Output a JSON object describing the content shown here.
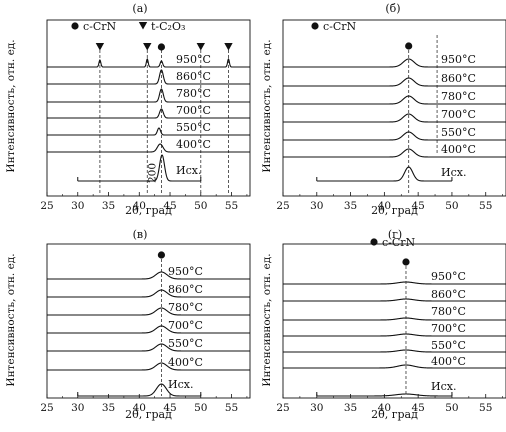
{
  "chart_data": [
    {
      "panel": "(а)",
      "type": "line",
      "xlabel": "2θ, град",
      "ylabel": "Интенсивность, отн. ед.",
      "xlim": [
        25,
        58
      ],
      "xticks": [
        "25",
        "30",
        "35",
        "40",
        "45",
        "50",
        "55"
      ],
      "legend": [
        {
          "marker": "circle",
          "label": "c-CrN"
        },
        {
          "marker": "triangle-down",
          "label": "t-C₂O₃"
        }
      ],
      "peak_marker": {
        "marker": "circle",
        "x": 43.6
      },
      "reflection_lines": [
        {
          "x": 33.6,
          "marker": "triangle-down"
        },
        {
          "x": 41.3,
          "marker": "triangle-down"
        },
        {
          "x": 43.6,
          "marker": "circle"
        },
        {
          "x": 50.0,
          "marker": "triangle-down"
        },
        {
          "x": 54.5,
          "marker": "triangle-down"
        }
      ],
      "annotation": "200",
      "annotation_x": 42.6,
      "series": [
        {
          "name": "950°C",
          "peaks": [
            [
              33.6,
              7,
              0.15
            ],
            [
              41.3,
              8,
              0.15
            ],
            [
              43.6,
              6,
              0.2
            ],
            [
              54.5,
              8,
              0.15
            ]
          ]
        },
        {
          "name": "860°C",
          "peaks": [
            [
              43.6,
              14,
              0.3
            ]
          ]
        },
        {
          "name": "780°C",
          "peaks": [
            [
              43.6,
              13,
              0.3
            ]
          ]
        },
        {
          "name": "700°C",
          "peaks": [
            [
              43.6,
              9,
              0.3
            ]
          ]
        },
        {
          "name": "550°C",
          "peaks": [
            [
              43.2,
              7,
              0.25
            ]
          ]
        },
        {
          "name": "400°C",
          "peaks": [
            [
              43.4,
              8,
              0.45
            ]
          ]
        },
        {
          "name": "Исх.",
          "peaks": [
            [
              43.7,
              26,
              0.4
            ]
          ]
        }
      ]
    },
    {
      "panel": "(б)",
      "type": "line",
      "xlabel": "2θ, град",
      "ylabel": "Интенсивность, отн. ед.",
      "xlim": [
        25,
        58
      ],
      "xticks": [
        "25",
        "30",
        "35",
        "40",
        "45",
        "50",
        "55"
      ],
      "legend": [
        {
          "marker": "circle",
          "label": "c-CrN"
        }
      ],
      "peak_marker": {
        "marker": "circle",
        "x": 43.6
      },
      "reflection_lines": [
        {
          "x": 43.6,
          "marker": "circle"
        },
        {
          "x": 47.8,
          "marker": "none"
        }
      ],
      "series": [
        {
          "name": "950°C",
          "peaks": [
            [
              43.6,
              8,
              0.8
            ]
          ]
        },
        {
          "name": "860°C",
          "peaks": [
            [
              43.6,
              8,
              0.8
            ]
          ]
        },
        {
          "name": "780°C",
          "peaks": [
            [
              43.6,
              8,
              0.8
            ]
          ]
        },
        {
          "name": "700°C",
          "peaks": [
            [
              43.6,
              8,
              0.8
            ]
          ]
        },
        {
          "name": "550°C",
          "peaks": [
            [
              43.6,
              8,
              0.8
            ]
          ]
        },
        {
          "name": "400°C",
          "peaks": [
            [
              43.6,
              8,
              0.8
            ]
          ]
        },
        {
          "name": "Исх.",
          "peaks": [
            [
              43.6,
              14,
              0.6
            ]
          ]
        }
      ]
    },
    {
      "panel": "(в)",
      "type": "line",
      "xlabel": "2θ, град",
      "ylabel": "Интенсивность, отн. ед.",
      "xlim": [
        25,
        58
      ],
      "xticks": [
        "25",
        "30",
        "35",
        "40",
        "45",
        "50",
        "55"
      ],
      "legend": [
        {
          "marker": "circle",
          "label": "c-CrN"
        }
      ],
      "peak_marker": {
        "marker": "circle",
        "x": 43.6
      },
      "reflection_lines": [
        {
          "x": 43.6,
          "marker": "circle"
        }
      ],
      "series": [
        {
          "name": "950°C",
          "peaks": [
            [
              43.6,
              7,
              0.9
            ]
          ]
        },
        {
          "name": "860°C",
          "peaks": [
            [
              43.6,
              7,
              0.9
            ]
          ]
        },
        {
          "name": "780°C",
          "peaks": [
            [
              43.6,
              7,
              0.9
            ]
          ]
        },
        {
          "name": "700°C",
          "peaks": [
            [
              43.6,
              7,
              0.9
            ]
          ]
        },
        {
          "name": "550°C",
          "peaks": [
            [
              43.6,
              7,
              0.9
            ]
          ]
        },
        {
          "name": "400°C",
          "peaks": [
            [
              43.6,
              7,
              0.9
            ]
          ]
        },
        {
          "name": "Исх.",
          "peaks": [
            [
              43.6,
              12,
              0.8
            ]
          ]
        }
      ]
    },
    {
      "panel": "(г)",
      "type": "line",
      "xlabel": "2θ, град",
      "ylabel": "Интенсивность, отн. ед.",
      "xlim": [
        25,
        58
      ],
      "xticks": [
        "25",
        "30",
        "35",
        "40",
        "45",
        "50",
        "55"
      ],
      "legend": [
        {
          "marker": "circle",
          "label": "c-CrN"
        }
      ],
      "peak_marker": {
        "marker": "circle",
        "x": 43.2
      },
      "reflection_lines": [
        {
          "x": 43.2,
          "marker": "circle"
        }
      ],
      "series": [
        {
          "name": "950°C",
          "peaks": [
            [
              43.2,
              2,
              1.2
            ]
          ]
        },
        {
          "name": "860°C",
          "peaks": [
            [
              43.2,
              2,
              1.2
            ]
          ]
        },
        {
          "name": "780°C",
          "peaks": [
            [
              43.2,
              2,
              1.2
            ]
          ]
        },
        {
          "name": "700°C",
          "peaks": [
            [
              43.2,
              2,
              1.2
            ]
          ]
        },
        {
          "name": "550°C",
          "peaks": [
            [
              43.2,
              2,
              1.2
            ]
          ]
        },
        {
          "name": "400°C",
          "peaks": [
            [
              43.2,
              3,
              1.2
            ]
          ]
        },
        {
          "name": "Исх.",
          "peaks": [
            [
              43.2,
              2,
              1.5
            ]
          ]
        }
      ]
    }
  ]
}
